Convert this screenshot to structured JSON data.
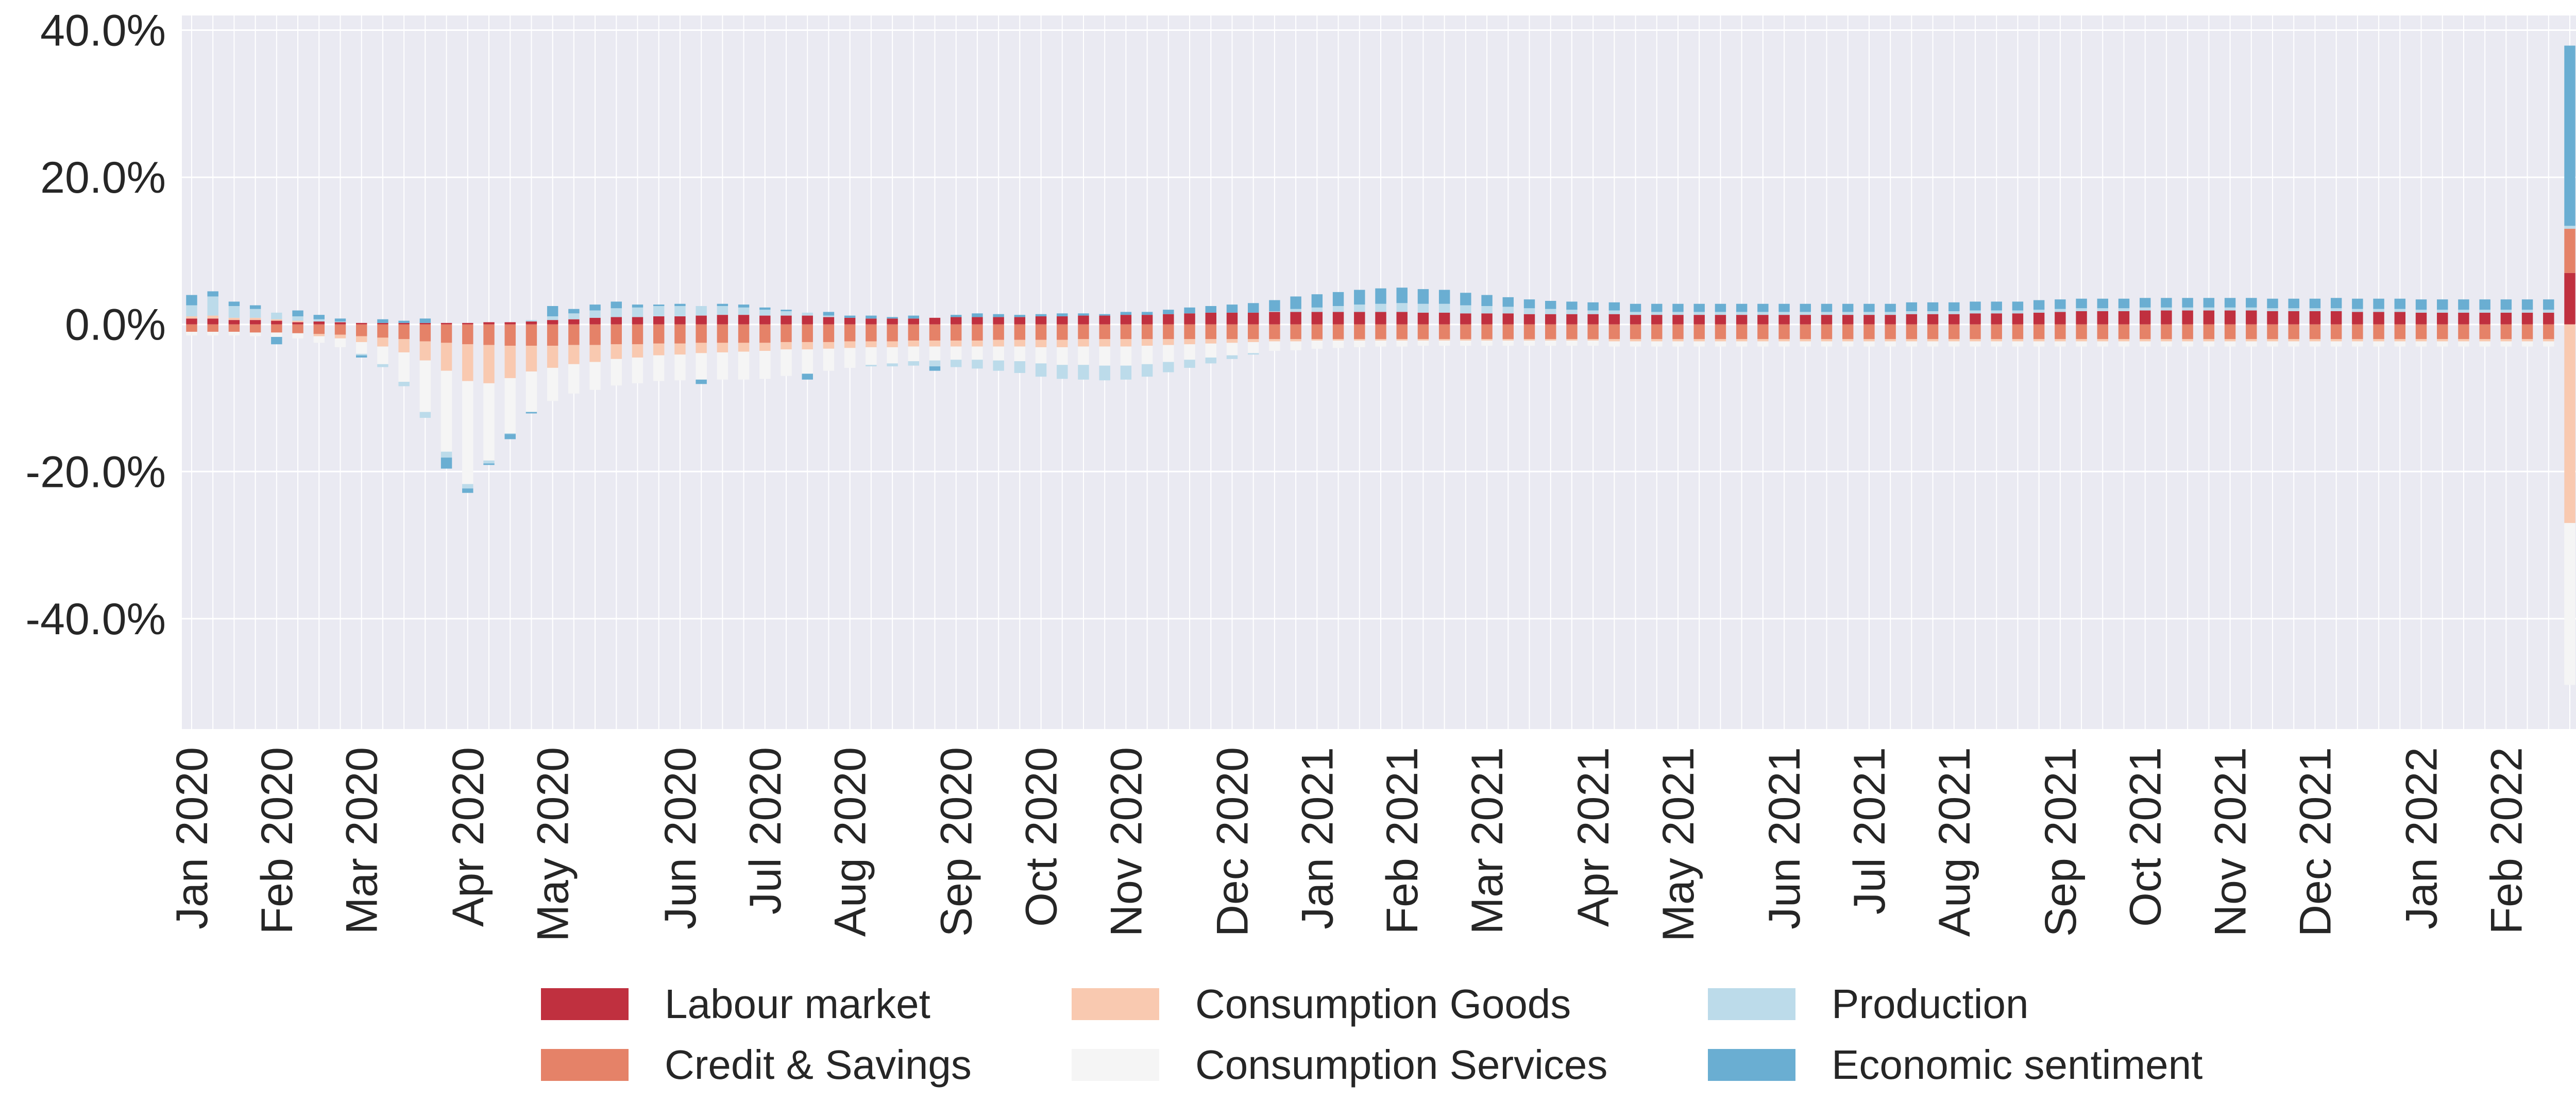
{
  "chart_data": {
    "type": "bar",
    "stacked": true,
    "title": "",
    "xlabel": "",
    "ylabel": "",
    "ylim": [
      -55,
      42
    ],
    "yticks": [
      40,
      20,
      0,
      -20,
      -40
    ],
    "ytick_labels": [
      "40.0%",
      "20.0%",
      "0.0%",
      "-20.0%",
      "-40.0%"
    ],
    "grid": true,
    "legend_position": "bottom-center",
    "x_axis_labels": [
      {
        "bar": 0,
        "label": "Jan 2020"
      },
      {
        "bar": 4,
        "label": "Feb 2020"
      },
      {
        "bar": 8,
        "label": "Mar 2020"
      },
      {
        "bar": 13,
        "label": "Apr 2020"
      },
      {
        "bar": 17,
        "label": "May 2020"
      },
      {
        "bar": 23,
        "label": "Jun 2020"
      },
      {
        "bar": 27,
        "label": "Jul 2020"
      },
      {
        "bar": 31,
        "label": "Aug 2020"
      },
      {
        "bar": 36,
        "label": "Sep 2020"
      },
      {
        "bar": 40,
        "label": "Oct 2020"
      },
      {
        "bar": 44,
        "label": "Nov 2020"
      },
      {
        "bar": 49,
        "label": "Dec 2020"
      },
      {
        "bar": 53,
        "label": "Jan 2021"
      },
      {
        "bar": 57,
        "label": "Feb 2021"
      },
      {
        "bar": 61,
        "label": "Mar 2021"
      },
      {
        "bar": 66,
        "label": "Apr 2021"
      },
      {
        "bar": 70,
        "label": "May 2021"
      },
      {
        "bar": 75,
        "label": "Jun 2021"
      },
      {
        "bar": 79,
        "label": "Jul 2021"
      },
      {
        "bar": 83,
        "label": "Aug 2021"
      },
      {
        "bar": 88,
        "label": "Sep 2021"
      },
      {
        "bar": 92,
        "label": "Oct 2021"
      },
      {
        "bar": 96,
        "label": "Nov 2021"
      },
      {
        "bar": 100,
        "label": "Dec 2021"
      },
      {
        "bar": 105,
        "label": "Jan 2022"
      },
      {
        "bar": 109,
        "label": "Feb 2022"
      }
    ],
    "series": [
      {
        "name": "Labour market",
        "color": "#c0303f",
        "values": [
          0.8,
          0.8,
          0.6,
          0.6,
          0.5,
          0.3,
          0.4,
          0.3,
          0.2,
          0.2,
          0.2,
          0.2,
          0.2,
          0.2,
          0.3,
          0.3,
          0.4,
          0.6,
          0.7,
          0.9,
          1.0,
          1.0,
          1.1,
          1.1,
          1.2,
          1.3,
          1.3,
          1.2,
          1.2,
          1.2,
          1.0,
          0.9,
          0.8,
          0.8,
          0.8,
          0.9,
          1.0,
          1.0,
          1.0,
          1.0,
          1.1,
          1.1,
          1.2,
          1.2,
          1.3,
          1.3,
          1.4,
          1.5,
          1.6,
          1.6,
          1.6,
          1.7,
          1.7,
          1.7,
          1.7,
          1.7,
          1.7,
          1.7,
          1.6,
          1.6,
          1.5,
          1.5,
          1.5,
          1.4,
          1.4,
          1.4,
          1.4,
          1.4,
          1.3,
          1.3,
          1.3,
          1.3,
          1.3,
          1.3,
          1.3,
          1.3,
          1.3,
          1.3,
          1.3,
          1.3,
          1.3,
          1.4,
          1.4,
          1.4,
          1.5,
          1.5,
          1.5,
          1.6,
          1.7,
          1.8,
          1.8,
          1.8,
          1.9,
          1.9,
          1.9,
          1.9,
          1.9,
          1.9,
          1.8,
          1.8,
          1.8,
          1.8,
          1.7,
          1.7,
          1.7,
          1.6,
          1.6,
          1.6,
          1.6,
          1.6,
          1.6,
          1.6,
          7.0
        ]
      },
      {
        "name": "Credit & Savings",
        "color": "#e58268",
        "values": [
          -1.0,
          -1.0,
          -1.0,
          -1.1,
          -1.1,
          -1.2,
          -1.3,
          -1.4,
          -1.6,
          -1.8,
          -2.0,
          -2.3,
          -2.5,
          -2.7,
          -2.8,
          -2.9,
          -2.9,
          -2.9,
          -2.8,
          -2.8,
          -2.7,
          -2.7,
          -2.6,
          -2.6,
          -2.5,
          -2.5,
          -2.5,
          -2.5,
          -2.4,
          -2.4,
          -2.4,
          -2.3,
          -2.3,
          -2.3,
          -2.2,
          -2.2,
          -2.2,
          -2.2,
          -2.1,
          -2.1,
          -2.1,
          -2.1,
          -2.0,
          -2.0,
          -2.0,
          -2.0,
          -2.0,
          -2.0,
          -2.0,
          -2.0,
          -2.0,
          -2.0,
          -2.0,
          -2.0,
          -2.0,
          -2.0,
          -2.0,
          -2.0,
          -2.0,
          -2.0,
          -2.0,
          -2.0,
          -2.0,
          -2.0,
          -2.0,
          -2.0,
          -2.0,
          -2.0,
          -2.0,
          -2.0,
          -2.0,
          -2.0,
          -2.0,
          -2.0,
          -2.0,
          -2.0,
          -2.0,
          -2.0,
          -2.0,
          -2.0,
          -2.0,
          -2.0,
          -2.0,
          -2.0,
          -2.0,
          -2.0,
          -2.0,
          -2.0,
          -2.0,
          -2.0,
          -2.0,
          -2.0,
          -2.0,
          -2.0,
          -2.0,
          -2.0,
          -2.0,
          -2.0,
          -2.0,
          -2.0,
          -2.0,
          -2.0,
          -2.0,
          -2.0,
          -2.0,
          -2.0,
          -2.0,
          -2.0,
          -2.0,
          -2.0,
          -2.0,
          -2.0,
          6.0
        ]
      },
      {
        "name": "Consumption Goods",
        "color": "#f9c9b0",
        "values": [
          0.3,
          0.4,
          0.3,
          0.3,
          0.2,
          0.2,
          -0.3,
          -0.5,
          -0.8,
          -1.2,
          -1.8,
          -2.6,
          -3.8,
          -5.0,
          -5.2,
          -4.4,
          -3.5,
          -3.0,
          -2.6,
          -2.3,
          -2.0,
          -1.8,
          -1.6,
          -1.5,
          -1.4,
          -1.3,
          -1.2,
          -1.1,
          -1.0,
          -1.0,
          -0.9,
          -0.9,
          -0.8,
          -0.8,
          -0.8,
          -0.8,
          -0.8,
          -0.8,
          -0.9,
          -0.9,
          -1.0,
          -1.0,
          -1.0,
          -1.0,
          -1.0,
          -0.9,
          -0.8,
          -0.7,
          -0.6,
          -0.5,
          -0.4,
          -0.3,
          -0.3,
          -0.2,
          -0.2,
          -0.2,
          -0.2,
          -0.2,
          -0.2,
          -0.2,
          -0.2,
          -0.2,
          -0.2,
          -0.2,
          -0.2,
          -0.2,
          -0.2,
          -0.3,
          -0.3,
          -0.3,
          -0.3,
          -0.3,
          -0.3,
          -0.3,
          -0.3,
          -0.3,
          -0.3,
          -0.3,
          -0.3,
          -0.3,
          -0.3,
          -0.3,
          -0.3,
          -0.3,
          -0.3,
          -0.3,
          -0.3,
          -0.3,
          -0.3,
          -0.3,
          -0.3,
          -0.3,
          -0.3,
          -0.3,
          -0.3,
          -0.3,
          -0.3,
          -0.3,
          -0.3,
          -0.3,
          -0.3,
          -0.3,
          -0.3,
          -0.3,
          -0.3,
          -0.3,
          -0.3,
          -0.3,
          -0.3,
          -0.3,
          -0.3,
          -0.3,
          -27.0
        ]
      },
      {
        "name": "Consumption Services",
        "color": "#f5f5f5",
        "values": [
          -0.5,
          -0.5,
          -0.5,
          -0.5,
          -0.6,
          -0.7,
          -0.9,
          -1.2,
          -1.6,
          -2.4,
          -4.0,
          -7.0,
          -11.0,
          -14.0,
          -10.5,
          -7.5,
          -5.5,
          -4.5,
          -4.0,
          -3.8,
          -3.6,
          -3.5,
          -3.5,
          -3.5,
          -3.6,
          -3.7,
          -3.8,
          -3.8,
          -3.6,
          -3.3,
          -3.0,
          -2.7,
          -2.4,
          -2.2,
          -2.0,
          -1.9,
          -1.8,
          -1.8,
          -1.9,
          -2.0,
          -2.2,
          -2.4,
          -2.5,
          -2.6,
          -2.6,
          -2.5,
          -2.3,
          -2.1,
          -1.9,
          -1.7,
          -1.5,
          -1.3,
          -1.2,
          -1.1,
          -1.0,
          -0.9,
          -0.8,
          -0.8,
          -0.7,
          -0.7,
          -0.7,
          -0.7,
          -0.7,
          -0.7,
          -0.7,
          -0.7,
          -0.7,
          -0.7,
          -0.7,
          -0.7,
          -0.7,
          -0.7,
          -0.7,
          -0.7,
          -0.7,
          -0.7,
          -0.7,
          -0.7,
          -0.7,
          -0.7,
          -0.7,
          -0.7,
          -0.7,
          -0.7,
          -0.7,
          -0.7,
          -0.7,
          -0.7,
          -0.7,
          -0.7,
          -0.7,
          -0.7,
          -0.7,
          -0.7,
          -0.7,
          -0.7,
          -0.7,
          -0.7,
          -0.7,
          -0.7,
          -0.7,
          -0.7,
          -0.7,
          -0.7,
          -0.7,
          -0.7,
          -0.7,
          -0.7,
          -0.7,
          -0.7,
          -0.7,
          -0.7,
          -22.0
        ]
      },
      {
        "name": "Production",
        "color": "#bcdbea",
        "values": [
          1.5,
          2.6,
          1.6,
          1.2,
          0.9,
          0.6,
          0.3,
          0.1,
          -0.2,
          -0.4,
          -0.6,
          -0.8,
          -0.8,
          -0.6,
          -0.4,
          -0.1,
          0.2,
          0.5,
          0.8,
          1.0,
          1.2,
          1.3,
          1.4,
          1.4,
          1.3,
          1.2,
          1.0,
          0.8,
          0.6,
          0.4,
          0.2,
          0.0,
          -0.2,
          -0.4,
          -0.6,
          -0.8,
          -1.0,
          -1.2,
          -1.4,
          -1.6,
          -1.8,
          -1.9,
          -2.0,
          -2.0,
          -1.9,
          -1.7,
          -1.4,
          -1.1,
          -0.8,
          -0.5,
          -0.2,
          0.1,
          0.4,
          0.6,
          0.8,
          1.0,
          1.1,
          1.2,
          1.2,
          1.2,
          1.1,
          1.0,
          0.9,
          0.8,
          0.7,
          0.6,
          0.5,
          0.5,
          0.4,
          0.4,
          0.4,
          0.4,
          0.4,
          0.4,
          0.4,
          0.4,
          0.4,
          0.4,
          0.4,
          0.4,
          0.4,
          0.4,
          0.4,
          0.4,
          0.4,
          0.4,
          0.4,
          0.4,
          0.4,
          0.4,
          0.4,
          0.4,
          0.4,
          0.4,
          0.4,
          0.4,
          0.4,
          0.4,
          0.4,
          0.4,
          0.4,
          0.4,
          0.4,
          0.4,
          0.4,
          0.4,
          0.4,
          0.4,
          0.4,
          0.4,
          0.4,
          0.4,
          0.4
        ]
      },
      {
        "name": "Economic sentiment",
        "color": "#6aaed2",
        "values": [
          1.4,
          0.7,
          0.6,
          0.5,
          -1.0,
          0.8,
          0.6,
          0.4,
          -0.3,
          0.5,
          0.3,
          0.6,
          -1.5,
          -0.6,
          -0.2,
          -0.7,
          -0.2,
          1.4,
          0.6,
          0.8,
          0.9,
          0.4,
          0.2,
          0.3,
          -0.6,
          0.3,
          0.4,
          0.3,
          0.2,
          -0.8,
          0.5,
          0.3,
          0.4,
          0.2,
          0.4,
          -0.6,
          0.3,
          0.5,
          0.4,
          0.3,
          0.3,
          0.4,
          0.3,
          0.2,
          0.4,
          0.4,
          0.6,
          0.8,
          0.9,
          1.1,
          1.3,
          1.5,
          1.7,
          1.8,
          1.9,
          2.0,
          2.1,
          2.1,
          2.0,
          1.9,
          1.7,
          1.5,
          1.3,
          1.2,
          1.1,
          1.1,
          1.1,
          1.1,
          1.1,
          1.1,
          1.1,
          1.1,
          1.1,
          1.1,
          1.1,
          1.1,
          1.1,
          1.1,
          1.1,
          1.1,
          1.1,
          1.2,
          1.2,
          1.2,
          1.2,
          1.2,
          1.2,
          1.3,
          1.3,
          1.3,
          1.3,
          1.3,
          1.3,
          1.3,
          1.3,
          1.3,
          1.3,
          1.3,
          1.3,
          1.3,
          1.3,
          1.4,
          1.4,
          1.4,
          1.4,
          1.4,
          1.4,
          1.4,
          1.4,
          1.4,
          1.4,
          1.4,
          24.5
        ]
      }
    ]
  }
}
